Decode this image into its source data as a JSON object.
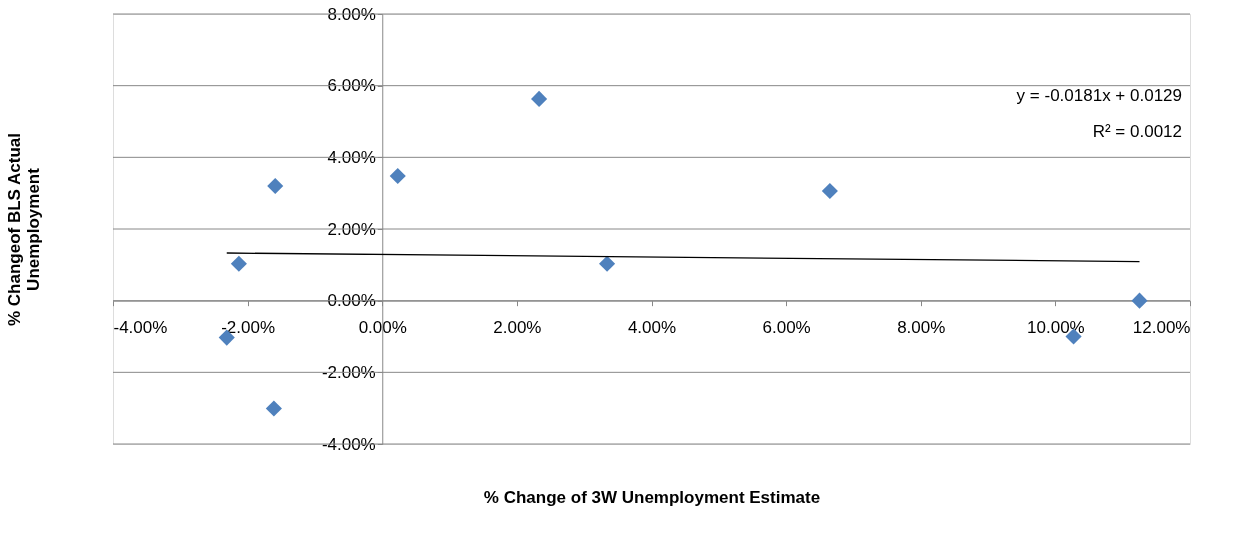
{
  "chart_data": {
    "type": "scatter",
    "xlabel": "% Change of 3W Unemployment Estimate",
    "ylabel": "% Changeof BLS Actual Unemployment",
    "annotations": [
      "y = -0.0181x + 0.0129",
      "R² = 0.0012"
    ],
    "series": [
      {
        "color": "#4f81bd",
        "marker": "diamond",
        "x": [
          -2.31,
          -2.13,
          -1.59,
          -1.61,
          0.23,
          2.33,
          3.34,
          6.65,
          10.27,
          11.25
        ],
        "values": [
          -1.03,
          1.03,
          3.2,
          -3.01,
          3.48,
          5.63,
          1.03,
          3.06,
          -1.0,
          0.0
        ]
      },
      {
        "type": "line",
        "color": "#000000",
        "marker": "none",
        "x": [
          -2.31,
          11.25
        ],
        "values": [
          1.33,
          1.09
        ]
      }
    ],
    "xlim": [
      -4,
      12
    ],
    "ylim": [
      -4,
      8
    ],
    "xticks": [
      {
        "value": -4,
        "label": "-4.00%"
      },
      {
        "value": -2,
        "label": "-2.00%"
      },
      {
        "value": 0,
        "label": "0.00%"
      },
      {
        "value": 2,
        "label": "2.00%"
      },
      {
        "value": 4,
        "label": "4.00%"
      },
      {
        "value": 6,
        "label": "6.00%"
      },
      {
        "value": 8,
        "label": "8.00%"
      },
      {
        "value": 10,
        "label": "10.00%"
      },
      {
        "value": 12,
        "label": "12.00%"
      }
    ],
    "yticks": [
      {
        "value": -4,
        "label": "-4.00%"
      },
      {
        "value": -2,
        "label": "-2.00%"
      },
      {
        "value": 0,
        "label": "0.00%"
      },
      {
        "value": 2,
        "label": "2.00%"
      },
      {
        "value": 4,
        "label": "4.00%"
      },
      {
        "value": 6,
        "label": "6.00%"
      },
      {
        "value": 8,
        "label": "8.00%"
      }
    ],
    "grid": "y"
  }
}
